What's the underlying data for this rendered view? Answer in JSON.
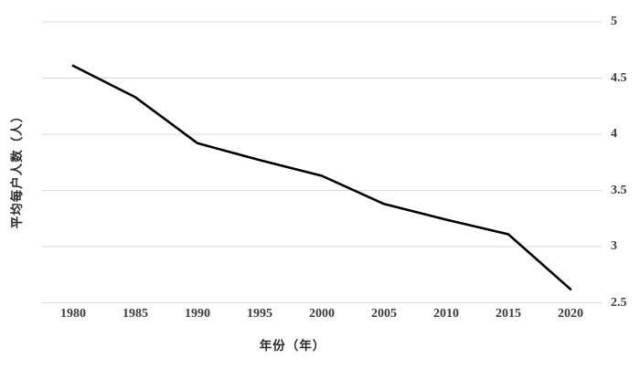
{
  "chart_data": {
    "type": "line",
    "title": "",
    "xlabel": "年份（年）",
    "ylabel": "平均每户人数（人）",
    "series_name": "平均每户人数",
    "categories": [
      "1980",
      "1985",
      "1990",
      "1995",
      "2000",
      "2005",
      "2010",
      "2015",
      "2020"
    ],
    "values": [
      4.61,
      4.33,
      3.92,
      3.77,
      3.63,
      3.38,
      3.24,
      3.11,
      2.62
    ],
    "ylim": [
      2.5,
      5
    ],
    "y_ticks": [
      5,
      4.5,
      4,
      3.5,
      3,
      2.5
    ],
    "y_tick_labels": [
      "5",
      "4.5",
      "4",
      "3.5",
      "3",
      "2.5"
    ],
    "grid": true,
    "legend": "none",
    "colors": {
      "line": "#000000",
      "grid": "#d9d9d9",
      "tick_label": "#3d3d3d",
      "axis_title": "#2b2b2b",
      "background": "#ffffff"
    }
  }
}
